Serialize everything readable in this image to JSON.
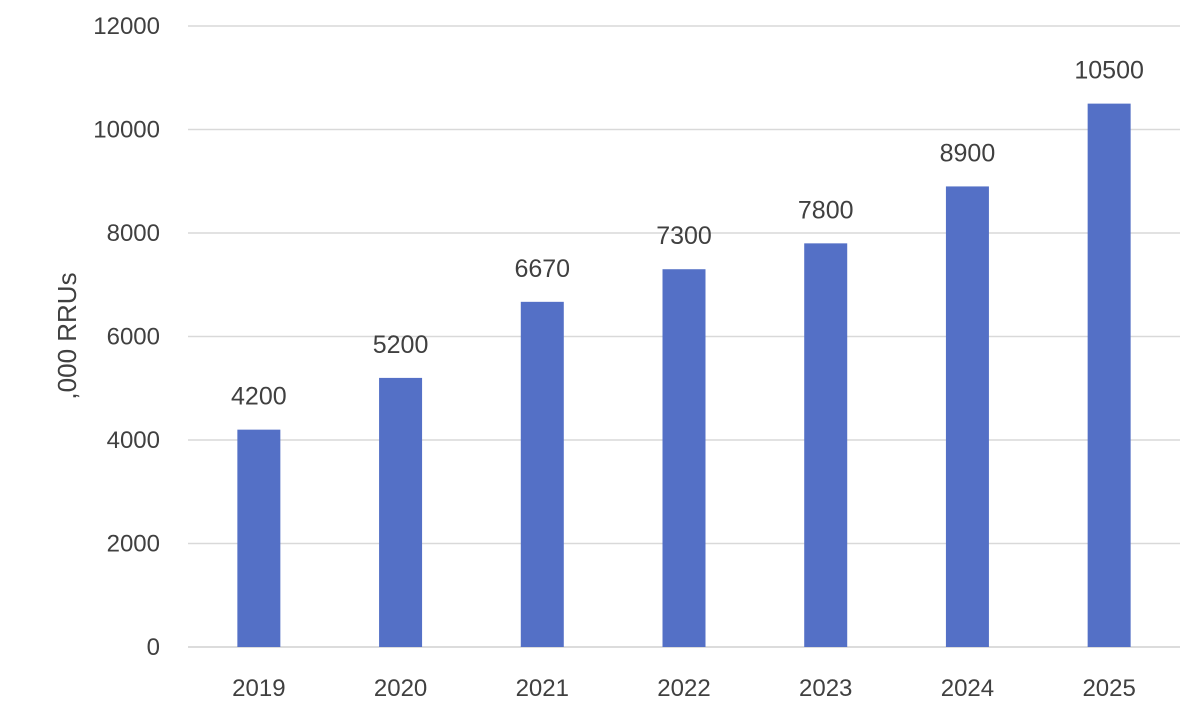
{
  "chart_data": {
    "type": "bar",
    "title": "",
    "xlabel": "",
    "ylabel": ",000 RRUs",
    "categories": [
      "2019",
      "2020",
      "2021",
      "2022",
      "2023",
      "2024",
      "2025"
    ],
    "values": [
      4200,
      5200,
      6670,
      7300,
      7800,
      8900,
      10500
    ],
    "data_labels": [
      "4200",
      "5200",
      "6670",
      "7300",
      "7800",
      "8900",
      "10500"
    ],
    "ylim": [
      0,
      12000
    ],
    "yticks": [
      0,
      2000,
      4000,
      6000,
      8000,
      10000,
      12000
    ],
    "ytick_labels": [
      "0",
      "2000",
      "4000",
      "6000",
      "8000",
      "10000",
      "12000"
    ],
    "grid": true,
    "legend": "none",
    "bar_color": "#5470c6"
  }
}
